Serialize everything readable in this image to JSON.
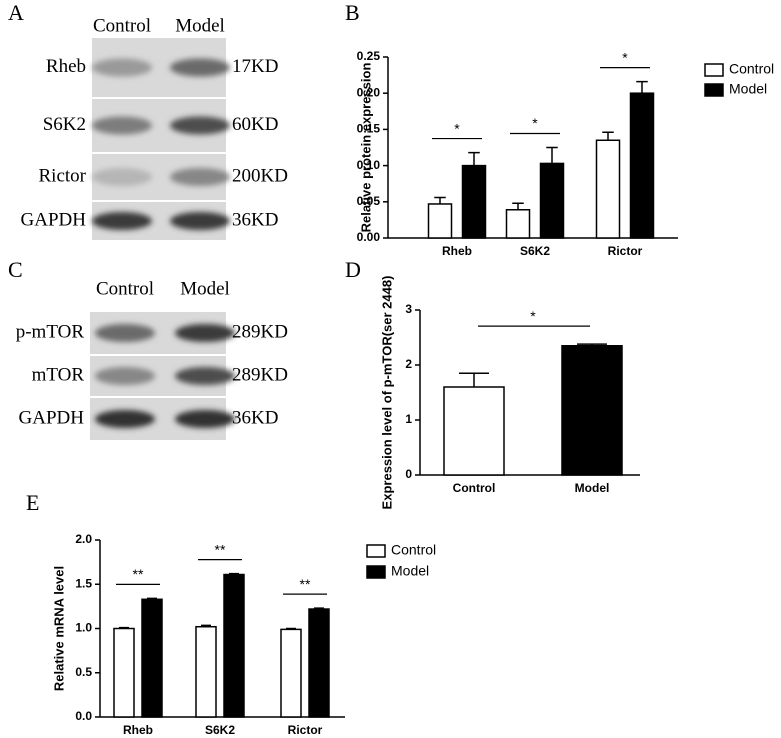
{
  "blots": [
    {
      "panel_label": "A",
      "lanes": [
        "Control",
        "Model"
      ],
      "rows": [
        {
          "name": "Rheb",
          "size": "17KD"
        },
        {
          "name": "S6K2",
          "size": "60KD"
        },
        {
          "name": "Rictor",
          "size": "200KD"
        },
        {
          "name": "GAPDH",
          "size": "36KD"
        }
      ]
    },
    {
      "panel_label": "C",
      "lanes": [
        "Control",
        "Model"
      ],
      "rows": [
        {
          "name": "p-mTOR",
          "size": "289KD"
        },
        {
          "name": "mTOR",
          "size": "289KD"
        },
        {
          "name": "GAPDH",
          "size": "36KD"
        }
      ]
    }
  ],
  "chart_data": [
    {
      "type": "bar",
      "panel_label": "B",
      "ylabel": "Relative protein expression",
      "categories": [
        "Rheb",
        "S6K2",
        "Rictor"
      ],
      "series": [
        {
          "name": "Control",
          "color": "#ffffff",
          "values": [
            0.047,
            0.039,
            0.135
          ],
          "errors": [
            0.009,
            0.009,
            0.011
          ]
        },
        {
          "name": "Model",
          "color": "#000000",
          "values": [
            0.1,
            0.103,
            0.2
          ],
          "errors": [
            0.018,
            0.022,
            0.016
          ]
        }
      ],
      "significance": [
        "*",
        "*",
        "*"
      ],
      "ylim": [
        0,
        0.25
      ],
      "yticks": [
        {
          "value": 0,
          "label": "0.00"
        },
        {
          "value": 0.05,
          "label": "0.05"
        },
        {
          "value": 0.1,
          "label": "0.10"
        },
        {
          "value": 0.15,
          "label": "0.15"
        },
        {
          "value": 0.2,
          "label": "0.20"
        },
        {
          "value": 0.25,
          "label": "0.25"
        }
      ]
    },
    {
      "type": "bar",
      "panel_label": "D",
      "ylabel": "Expression level of p-mTOR(ser 2448)",
      "categories": [
        "Control",
        "Model"
      ],
      "values": [
        1.6,
        2.35
      ],
      "errors": [
        0.25,
        0.03
      ],
      "colors": [
        "#ffffff",
        "#000000"
      ],
      "significance": [
        "*"
      ],
      "ylim": [
        0,
        3
      ],
      "yticks": [
        0,
        1,
        2,
        3
      ]
    },
    {
      "type": "bar",
      "panel_label": "E",
      "ylabel": "Relative mRNA level",
      "categories": [
        "Rheb",
        "S6K2",
        "Rictor"
      ],
      "series": [
        {
          "name": "Control",
          "color": "#ffffff",
          "values": [
            1.0,
            1.02,
            0.99
          ],
          "errors": [
            0.01,
            0.015,
            0.01
          ]
        },
        {
          "name": "Model",
          "color": "#000000",
          "values": [
            1.33,
            1.61,
            1.22
          ],
          "errors": [
            0.01,
            0.01,
            0.01
          ]
        }
      ],
      "significance": [
        "**",
        "**",
        "**"
      ],
      "ylim": [
        0,
        2.0
      ],
      "yticks": [
        {
          "value": 0,
          "label": "0.0"
        },
        {
          "value": 0.5,
          "label": "0.5"
        },
        {
          "value": 1.0,
          "label": "1.0"
        },
        {
          "value": 1.5,
          "label": "1.5"
        },
        {
          "value": 2.0,
          "label": "2.0"
        }
      ]
    }
  ]
}
